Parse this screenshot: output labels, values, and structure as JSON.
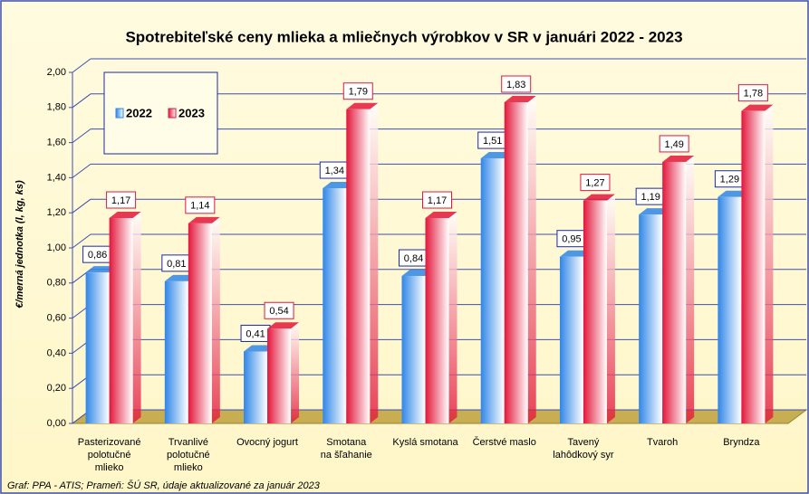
{
  "chart_data": {
    "type": "bar3d",
    "title": "Spotrebiteľské ceny mlieka a mliečnych výrobkov v SR v januári 2022 - 2023",
    "y_label": "€/merná jednotka (l, kg, ks)",
    "footnote": "Graf: PPA - ATIS; Prameň: ŠÚ SR, údaje aktualizované za január 2023",
    "categories": [
      "Pasterizované\npolotučné\nmlieko",
      "Trvanlivé\npolotučné\nmlieko",
      "Ovocný jogurt",
      "Smotana\nna šľahanie",
      "Kyslá smotana",
      "Čerstvé maslo",
      "Tavený\nlahôdkový syr",
      "Tvaroh",
      "Bryndza"
    ],
    "series": [
      {
        "name": "2022",
        "color": "#2f86e8",
        "values": [
          0.86,
          0.81,
          0.41,
          1.34,
          0.84,
          1.51,
          0.95,
          1.19,
          1.29
        ],
        "value_labels": [
          "0,86",
          "0,81",
          "0,41",
          "1,34",
          "0,84",
          "1,51",
          "0,95",
          "1,19",
          "1,29"
        ]
      },
      {
        "name": "2023",
        "color": "#e3163a",
        "values": [
          1.17,
          1.14,
          0.54,
          1.79,
          1.17,
          1.83,
          1.27,
          1.49,
          1.78
        ],
        "value_labels": [
          "1,17",
          "1,14",
          "0,54",
          "1,79",
          "1,17",
          "1,83",
          "1,27",
          "1,49",
          "1,78"
        ]
      }
    ],
    "ylim": [
      0,
      2
    ],
    "yticks": [
      {
        "value": 0,
        "label": "0,00"
      },
      {
        "value": 0.2,
        "label": "0,20"
      },
      {
        "value": 0.4,
        "label": "0,40"
      },
      {
        "value": 0.6,
        "label": "0,60"
      },
      {
        "value": 0.8,
        "label": "0,80"
      },
      {
        "value": 1,
        "label": "1,00"
      },
      {
        "value": 1.2,
        "label": "1,20"
      },
      {
        "value": 1.4,
        "label": "1,40"
      },
      {
        "value": 1.6,
        "label": "1,60"
      },
      {
        "value": 1.8,
        "label": "1,80"
      },
      {
        "value": 2,
        "label": "2,00"
      }
    ],
    "grid": true
  }
}
